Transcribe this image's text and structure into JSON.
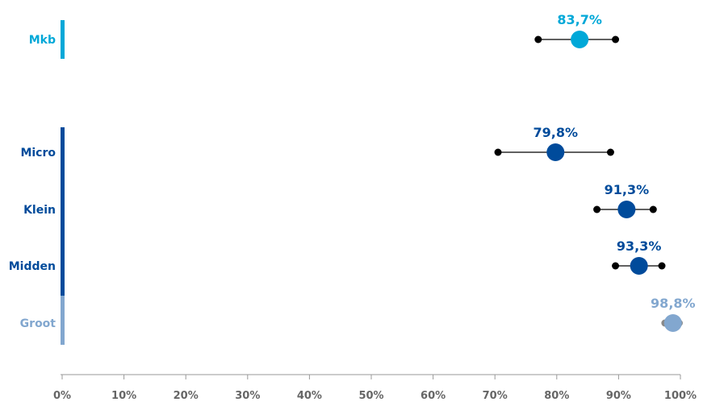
{
  "chart_data": {
    "type": "scatter",
    "subtype": "dot-with-error-bars",
    "orientation": "horizontal",
    "title": "",
    "xlabel": "",
    "ylabel": "",
    "xlim": [
      0,
      100
    ],
    "x_ticks": [
      "0%",
      "10%",
      "20%",
      "30%",
      "40%",
      "50%",
      "60%",
      "70%",
      "80%",
      "90%",
      "100%"
    ],
    "x_tick_values": [
      0,
      10,
      20,
      30,
      40,
      50,
      60,
      70,
      80,
      90,
      100
    ],
    "grid": false,
    "legend": "none",
    "categories": [
      "Mkb",
      "Micro",
      "Klein",
      "Midden",
      "Groot"
    ],
    "points": [
      {
        "category": "Mkb",
        "value": 83.7,
        "label": "83,7%",
        "low": 77.0,
        "high": 89.5,
        "color": "#00a8d8",
        "group": "mkb"
      },
      {
        "category": "Micro",
        "value": 79.8,
        "label": "79,8%",
        "low": 70.5,
        "high": 88.7,
        "color": "#004b9b",
        "group": "size"
      },
      {
        "category": "Klein",
        "value": 91.3,
        "label": "91,3%",
        "low": 86.5,
        "high": 95.6,
        "color": "#004b9b",
        "group": "size"
      },
      {
        "category": "Midden",
        "value": 93.3,
        "label": "93,3%",
        "low": 89.5,
        "high": 97.0,
        "color": "#004b9b",
        "group": "size"
      },
      {
        "category": "Groot",
        "value": 98.8,
        "label": "98,8%",
        "low": 97.5,
        "high": 99.8,
        "color": "#82a7cf",
        "whisker_color": "#888888",
        "group": "size"
      }
    ],
    "group_bar_colors": {
      "mkb": "#00a8d8",
      "size": "#004b9b",
      "groot": "#82a7cf"
    }
  }
}
